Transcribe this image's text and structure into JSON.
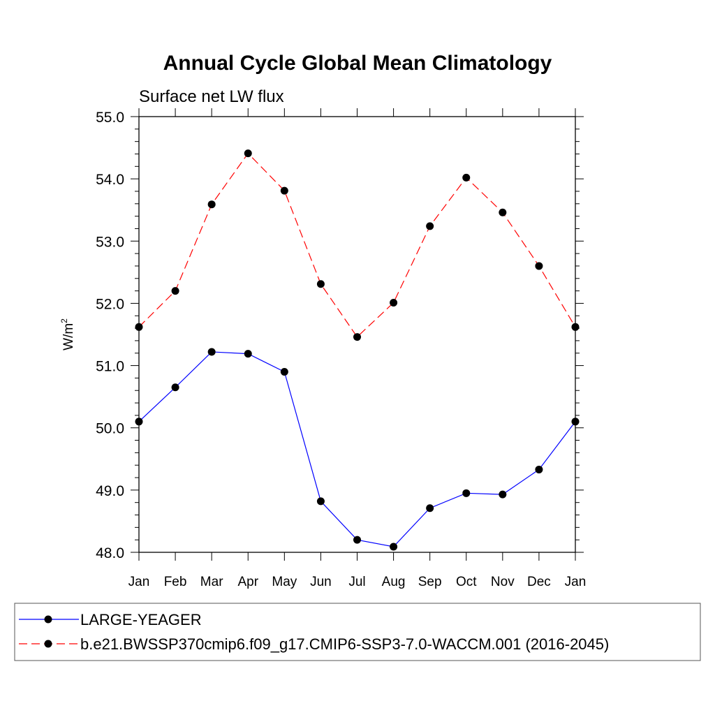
{
  "chart_data": {
    "type": "line",
    "title": "Annual Cycle Global Mean Climatology",
    "subtitle": "Surface net LW flux",
    "ylabel": "W/m",
    "ylabel_superscript": "2",
    "xlabel": "",
    "categories": [
      "Jan",
      "Feb",
      "Mar",
      "Apr",
      "May",
      "Jun",
      "Jul",
      "Aug",
      "Sep",
      "Oct",
      "Nov",
      "Dec",
      "Jan"
    ],
    "ylim": [
      48.0,
      55.0
    ],
    "yticks": [
      "48.0",
      "49.0",
      "50.0",
      "51.0",
      "52.0",
      "53.0",
      "54.0",
      "55.0"
    ],
    "grid": false,
    "legend_position": "bottom",
    "series": [
      {
        "name": "LARGE-YEAGER",
        "color": "#0000ff",
        "line_style": "solid",
        "values": [
          50.1,
          50.65,
          51.22,
          51.19,
          50.9,
          48.82,
          48.2,
          48.09,
          48.71,
          48.95,
          48.93,
          49.33,
          50.1
        ]
      },
      {
        "name": "b.e21.BWSSP370cmip6.f09_g17.CMIP6-SSP3-7.0-WACCM.001 (2016-2045)",
        "color": "#ff0000",
        "line_style": "dashed",
        "values": [
          51.62,
          52.2,
          53.59,
          54.41,
          53.81,
          52.31,
          51.46,
          52.01,
          53.24,
          54.02,
          53.46,
          52.6,
          51.62
        ]
      }
    ]
  }
}
